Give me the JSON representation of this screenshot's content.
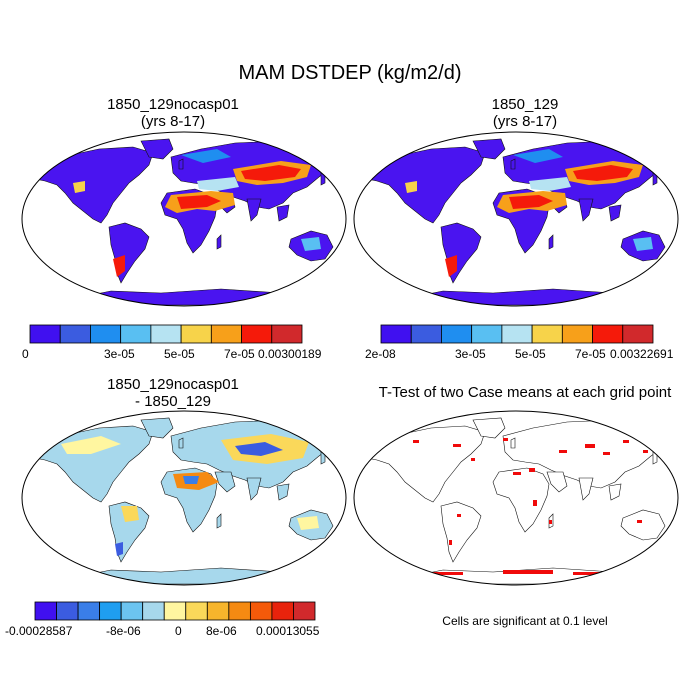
{
  "figure": {
    "title": "MAM DSTDEP (kg/m2/d)"
  },
  "panels": [
    {
      "id": "case1",
      "title_line1": "1850_129nocasp01",
      "title_line2": "(yrs 8-17)",
      "colorbar": {
        "colors": [
          "#4010f0",
          "#3b5ce0",
          "#1f8ef0",
          "#59bff2",
          "#b6e3f2",
          "#f7d34a",
          "#f7a01a",
          "#f51a0a",
          "#d1292c"
        ],
        "labels": [
          "0",
          "3e-05",
          "5e-05",
          "7e-05",
          "0.00300189"
        ]
      }
    },
    {
      "id": "case2",
      "title_line1": "1850_129",
      "title_line2": "(yrs 8-17)",
      "colorbar": {
        "colors": [
          "#4010f0",
          "#3b5ce0",
          "#1f8ef0",
          "#59bff2",
          "#b6e3f2",
          "#f7d34a",
          "#f7a01a",
          "#f51a0a",
          "#d1292c"
        ],
        "labels": [
          "2e-08",
          "3e-05",
          "5e-05",
          "7e-05",
          "0.00322691"
        ]
      }
    },
    {
      "id": "difference",
      "title_line1": "1850_129nocasp01",
      "title_line2": "- 1850_129",
      "colorbar": {
        "colors": [
          "#4010f0",
          "#3b5ce0",
          "#3a7ee8",
          "#1f9ef0",
          "#6cc4f0",
          "#a7d8ec",
          "#fff6a0",
          "#fad85a",
          "#f7b52c",
          "#f58a12",
          "#f55a0a",
          "#e8230c",
          "#d1292c"
        ],
        "labels": [
          "-0.00028587",
          "-8e-06",
          "0",
          "8e-06",
          "0.00013055"
        ]
      }
    },
    {
      "id": "ttest",
      "title_line1": "T-Test of two Case means at each grid point",
      "note": "Cells are significant at 0.1 level"
    }
  ],
  "colors": {
    "land_base": "#4a14f0",
    "ocean": "#ffffff",
    "coast": "#111111",
    "diff_land": "#a7d8ec",
    "significant": "#f00a0a"
  }
}
